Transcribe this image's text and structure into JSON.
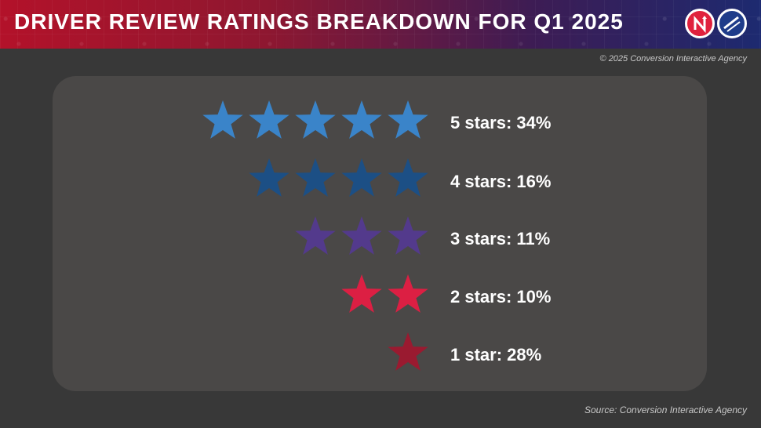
{
  "header": {
    "title": "DRIVER REVIEW RATINGS BREAKDOWN FOR Q1 2025"
  },
  "copyright": "© 2025 Conversion Interactive Agency",
  "source": "Source: Conversion Interactive Agency",
  "colors": {
    "five": "#3a84c9",
    "four": "#1c4f85",
    "three": "#533a8c",
    "two": "#dc1f43",
    "one": "#9a1a30"
  },
  "chart_data": {
    "type": "bar",
    "title": "DRIVER REVIEW RATINGS BREAKDOWN FOR Q1 2025",
    "categories": [
      "5 stars",
      "4 stars",
      "3 stars",
      "2 stars",
      "1 star"
    ],
    "values": [
      34,
      16,
      11,
      10,
      28
    ],
    "unit": "%",
    "labels": [
      "5 stars: 34%",
      "4 stars: 16%",
      "3 stars: 11%",
      "2 stars: 10%",
      "1 star: 28%"
    ],
    "star_counts": [
      5,
      4,
      3,
      2,
      1
    ]
  }
}
